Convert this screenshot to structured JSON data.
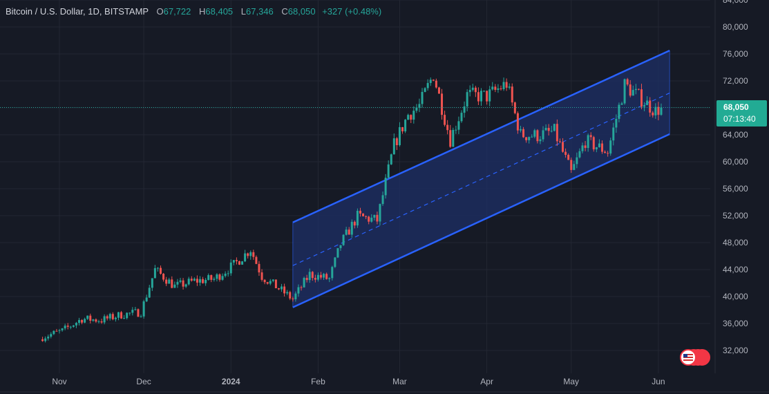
{
  "legend": {
    "symbol": "Bitcoin / U.S. Dollar, 1D, BITSTAMP",
    "o_label": "O",
    "o_value": "67,722",
    "h_label": "H",
    "h_value": "68,405",
    "l_label": "L",
    "l_value": "67,346",
    "c_label": "C",
    "c_value": "68,050",
    "change": "+327 (+0.48%)"
  },
  "price_badge": {
    "price": "68,050",
    "countdown": "07:13:40"
  },
  "colors": {
    "background": "#161a25",
    "grid": "#232733",
    "up": "#26a69a",
    "down": "#ef5350",
    "channel_line": "#2962ff",
    "channel_fill": "#1e2f66",
    "axis_text": "#b2b5be",
    "badge": "#22ab94"
  },
  "chart_data": {
    "type": "candlestick",
    "y_axis_labels": [
      "84,000",
      "80,000",
      "76,000",
      "72,000",
      "68,000",
      "64,000",
      "60,000",
      "56,000",
      "52,000",
      "48,000",
      "44,000",
      "40,000",
      "36,000",
      "32,000"
    ],
    "y_axis_values": [
      84000,
      80000,
      76000,
      72000,
      68000,
      64000,
      60000,
      56000,
      52000,
      48000,
      44000,
      40000,
      36000,
      32000
    ],
    "x_axis_labels": [
      "Nov",
      "Dec",
      "2024",
      "Feb",
      "Mar",
      "Apr",
      "May",
      "Jun"
    ],
    "ylim": [
      28000,
      86000
    ],
    "last_close": 68050,
    "close_path": [
      [
        "2023-10-26",
        34000
      ],
      [
        "2023-11-02",
        34900
      ],
      [
        "2023-11-09",
        36700
      ],
      [
        "2023-11-16",
        36500
      ],
      [
        "2023-11-23",
        37300
      ],
      [
        "2023-11-30",
        37700
      ],
      [
        "2023-12-05",
        44000
      ],
      [
        "2023-12-12",
        41500
      ],
      [
        "2023-12-19",
        42300
      ],
      [
        "2023-12-26",
        42600
      ],
      [
        "2024-01-02",
        44700
      ],
      [
        "2024-01-08",
        47000
      ],
      [
        "2024-01-12",
        43000
      ],
      [
        "2024-01-18",
        41200
      ],
      [
        "2024-01-23",
        39600
      ],
      [
        "2024-01-29",
        43300
      ],
      [
        "2024-02-05",
        42600
      ],
      [
        "2024-02-09",
        47800
      ],
      [
        "2024-02-15",
        51900
      ],
      [
        "2024-02-22",
        51300
      ],
      [
        "2024-02-28",
        62500
      ],
      [
        "2024-03-04",
        67000
      ],
      [
        "2024-03-08",
        68300
      ],
      [
        "2024-03-13",
        73000
      ],
      [
        "2024-03-19",
        63300
      ],
      [
        "2024-03-25",
        69900
      ],
      [
        "2024-04-01",
        69700
      ],
      [
        "2024-04-08",
        71600
      ],
      [
        "2024-04-13",
        64000
      ],
      [
        "2024-04-19",
        63900
      ],
      [
        "2024-04-25",
        64500
      ],
      [
        "2024-05-01",
        58300
      ],
      [
        "2024-05-06",
        63100
      ],
      [
        "2024-05-14",
        61500
      ],
      [
        "2024-05-20",
        71400
      ],
      [
        "2024-05-26",
        69300
      ],
      [
        "2024-05-31",
        67500
      ],
      [
        "2024-06-02",
        68050
      ]
    ],
    "channel": {
      "upper": [
        [
          "2024-01-23",
          51000
        ],
        [
          "2024-06-05",
          76500
        ]
      ],
      "middle": [
        [
          "2024-01-23",
          44600
        ],
        [
          "2024-06-05",
          70200
        ]
      ],
      "lower": [
        [
          "2024-01-23",
          38400
        ],
        [
          "2024-06-05",
          64100
        ]
      ]
    },
    "grid": true
  }
}
